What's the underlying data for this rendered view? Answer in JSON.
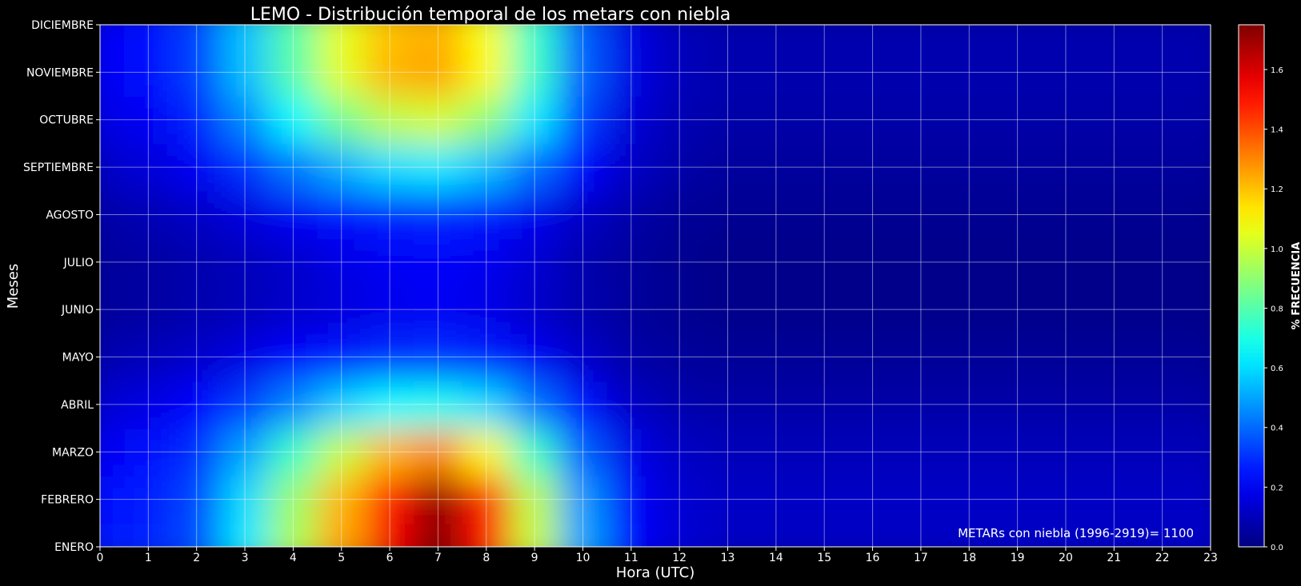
{
  "chart_data": {
    "type": "heatmap",
    "title": "LEMO - Distribución temporal de los metars con niebla",
    "xlabel": "Hora (UTC)",
    "ylabel": "Meses",
    "x": [
      0,
      1,
      2,
      3,
      4,
      5,
      6,
      7,
      8,
      9,
      10,
      11,
      12,
      13,
      14,
      15,
      16,
      17,
      18,
      19,
      20,
      21,
      22,
      23
    ],
    "y": [
      "ENERO",
      "FEBRERO",
      "MARZO",
      "ABRIL",
      "MAYO",
      "JUNIO",
      "JULIO",
      "AGOSTO",
      "SEPTIEMBRE",
      "OCTUBRE",
      "NOVIEMBRE",
      "DICIEMBRE"
    ],
    "z": [
      [
        0.25,
        0.28,
        0.35,
        0.62,
        0.95,
        1.25,
        1.55,
        1.75,
        1.5,
        1.0,
        0.5,
        0.22,
        0.15,
        0.12,
        0.12,
        0.12,
        0.12,
        0.12,
        0.12,
        0.12,
        0.12,
        0.12,
        0.12,
        0.12
      ],
      [
        0.24,
        0.27,
        0.34,
        0.6,
        0.92,
        1.22,
        1.52,
        1.72,
        1.48,
        0.98,
        0.48,
        0.21,
        0.14,
        0.12,
        0.12,
        0.12,
        0.12,
        0.12,
        0.12,
        0.12,
        0.12,
        0.12,
        0.12,
        0.12
      ],
      [
        0.2,
        0.23,
        0.3,
        0.5,
        0.75,
        1.0,
        1.22,
        1.3,
        1.1,
        0.75,
        0.38,
        0.18,
        0.12,
        0.1,
        0.1,
        0.1,
        0.1,
        0.1,
        0.1,
        0.1,
        0.1,
        0.1,
        0.1,
        0.1
      ],
      [
        0.14,
        0.17,
        0.22,
        0.32,
        0.45,
        0.58,
        0.66,
        0.68,
        0.6,
        0.42,
        0.24,
        0.12,
        0.08,
        0.07,
        0.07,
        0.07,
        0.07,
        0.07,
        0.07,
        0.07,
        0.07,
        0.07,
        0.07,
        0.07
      ],
      [
        0.08,
        0.1,
        0.13,
        0.17,
        0.22,
        0.26,
        0.29,
        0.3,
        0.27,
        0.2,
        0.13,
        0.07,
        0.05,
        0.04,
        0.04,
        0.04,
        0.04,
        0.04,
        0.04,
        0.04,
        0.04,
        0.04,
        0.04,
        0.04
      ],
      [
        0.05,
        0.06,
        0.08,
        0.1,
        0.13,
        0.16,
        0.19,
        0.2,
        0.18,
        0.13,
        0.08,
        0.05,
        0.03,
        0.02,
        0.02,
        0.02,
        0.02,
        0.02,
        0.02,
        0.02,
        0.02,
        0.02,
        0.02,
        0.02
      ],
      [
        0.05,
        0.06,
        0.08,
        0.1,
        0.13,
        0.17,
        0.2,
        0.21,
        0.19,
        0.14,
        0.08,
        0.05,
        0.03,
        0.02,
        0.02,
        0.02,
        0.02,
        0.02,
        0.02,
        0.02,
        0.02,
        0.02,
        0.02,
        0.02
      ],
      [
        0.07,
        0.09,
        0.12,
        0.16,
        0.2,
        0.24,
        0.27,
        0.28,
        0.25,
        0.19,
        0.12,
        0.07,
        0.04,
        0.03,
        0.03,
        0.03,
        0.03,
        0.03,
        0.03,
        0.03,
        0.03,
        0.03,
        0.03,
        0.03
      ],
      [
        0.12,
        0.15,
        0.2,
        0.3,
        0.42,
        0.52,
        0.6,
        0.62,
        0.55,
        0.4,
        0.22,
        0.12,
        0.07,
        0.05,
        0.05,
        0.05,
        0.05,
        0.05,
        0.05,
        0.05,
        0.05,
        0.05,
        0.05,
        0.05
      ],
      [
        0.17,
        0.2,
        0.28,
        0.45,
        0.65,
        0.85,
        0.98,
        1.02,
        0.9,
        0.62,
        0.32,
        0.15,
        0.09,
        0.07,
        0.07,
        0.07,
        0.07,
        0.07,
        0.07,
        0.07,
        0.07,
        0.07,
        0.07,
        0.07
      ],
      [
        0.2,
        0.24,
        0.33,
        0.55,
        0.8,
        1.05,
        1.22,
        1.25,
        1.1,
        0.75,
        0.38,
        0.17,
        0.1,
        0.08,
        0.08,
        0.08,
        0.08,
        0.08,
        0.08,
        0.08,
        0.08,
        0.08,
        0.08,
        0.08
      ],
      [
        0.2,
        0.24,
        0.33,
        0.55,
        0.8,
        1.05,
        1.2,
        1.23,
        1.08,
        0.74,
        0.37,
        0.17,
        0.1,
        0.08,
        0.08,
        0.08,
        0.08,
        0.08,
        0.08,
        0.08,
        0.08,
        0.08,
        0.08,
        0.08
      ]
    ],
    "colorbar": {
      "label": "% FRECUENCIA",
      "min": 0.0,
      "max": 1.75,
      "ticks": [
        "0.0",
        "0.2",
        "0.4",
        "0.6",
        "0.8",
        "1.0",
        "1.2",
        "1.4",
        "1.6"
      ],
      "colormap": "jet"
    },
    "annotation": "METARs con niebla (1996-2919)= 1100",
    "grid": true,
    "colors": {
      "background": "#000000",
      "grid": "#ffffff",
      "text": "#ffffff"
    }
  }
}
